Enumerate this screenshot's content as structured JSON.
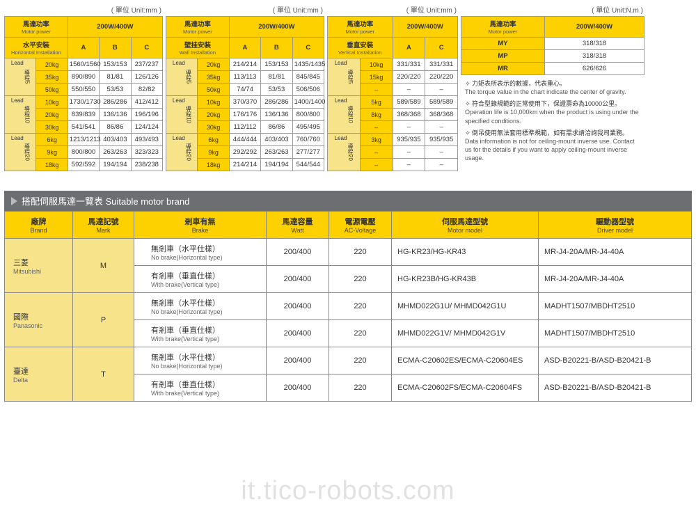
{
  "units": {
    "mm": "( 單位 Unit:mm )",
    "nm": "( 單位 Unit:N.m )"
  },
  "hdr": {
    "motorPower": "馬達功率",
    "motorPowerEn": "Motor power",
    "powVal": "200W/400W"
  },
  "installs": {
    "h": {
      "cn": "水平安裝",
      "en": "Horizontal Installation"
    },
    "w": {
      "cn": "壁挂安裝",
      "en": "Wall Installation"
    },
    "v": {
      "cn": "垂直安裝",
      "en": "Vertical Installation"
    }
  },
  "abc": [
    "A",
    "B",
    "C"
  ],
  "ac": [
    "A",
    "C"
  ],
  "leadLabels": {
    "l5": {
      "cn": "導程5",
      "en": "Lead"
    },
    "l10": {
      "cn": "導程10",
      "en": "Lead"
    },
    "l20": {
      "cn": "導程20",
      "en": "Lead"
    }
  },
  "t1": {
    "l5": [
      [
        "20kg",
        "1560/1560",
        "153/153",
        "237/237"
      ],
      [
        "35kg",
        "890/890",
        "81/81",
        "126/126"
      ],
      [
        "50kg",
        "550/550",
        "53/53",
        "82/82"
      ]
    ],
    "l10": [
      [
        "10kg",
        "1730/1730",
        "286/286",
        "412/412"
      ],
      [
        "20kg",
        "839/839",
        "136/136",
        "196/196"
      ],
      [
        "30kg",
        "541/541",
        "86/86",
        "124/124"
      ]
    ],
    "l20": [
      [
        "6kg",
        "1213/1213",
        "403/403",
        "493/493"
      ],
      [
        "9kg",
        "800/800",
        "263/263",
        "323/323"
      ],
      [
        "18kg",
        "592/592",
        "194/194",
        "238/238"
      ]
    ]
  },
  "t2": {
    "l5": [
      [
        "20kg",
        "214/214",
        "153/153",
        "1435/1435"
      ],
      [
        "35kg",
        "113/113",
        "81/81",
        "845/845"
      ],
      [
        "50kg",
        "74/74",
        "53/53",
        "506/506"
      ]
    ],
    "l10": [
      [
        "10kg",
        "370/370",
        "286/286",
        "1400/1400"
      ],
      [
        "20kg",
        "176/176",
        "136/136",
        "800/800"
      ],
      [
        "30kg",
        "112/112",
        "86/86",
        "495/495"
      ]
    ],
    "l20": [
      [
        "6kg",
        "444/444",
        "403/403",
        "760/760"
      ],
      [
        "9kg",
        "292/292",
        "263/263",
        "277/277"
      ],
      [
        "18kg",
        "214/214",
        "194/194",
        "544/544"
      ]
    ]
  },
  "t3": {
    "l5": [
      [
        "10kg",
        "331/331",
        "331/331"
      ],
      [
        "15kg",
        "220/220",
        "220/220"
      ],
      [
        "–",
        "–",
        "–"
      ]
    ],
    "l10": [
      [
        "5kg",
        "589/589",
        "589/589"
      ],
      [
        "8kg",
        "368/368",
        "368/368"
      ],
      [
        "–",
        "–",
        "–"
      ]
    ],
    "l20": [
      [
        "3kg",
        "935/935",
        "935/935"
      ],
      [
        "–",
        "–",
        "–"
      ],
      [
        "–",
        "–",
        "–"
      ]
    ]
  },
  "t4": {
    "rows": [
      [
        "MY",
        "318/318"
      ],
      [
        "MP",
        "318/318"
      ],
      [
        "MR",
        "626/626"
      ]
    ]
  },
  "notes": [
    {
      "cn": "✧ 力矩表所表示的數據，代表重心。",
      "en": "The torque value in the chart indicate the center of gravity."
    },
    {
      "cn": "✧ 符合型錄規範的正常使用下，保證壽命為10000公里。",
      "en": "Operation life is 10,000km when the product is using under the specified conditions."
    },
    {
      "cn": "✧ 倒吊使用無法套用標準規範，如有需求請洽詢我司業務。",
      "en": "Data information is not for ceiling-mount inverse use. Contact us for the details if you want to apply ceiling-mount inverse usage."
    }
  ],
  "sec2": {
    "title": "搭配伺服馬達一覽表 Suitable motor brand"
  },
  "mhdr": [
    {
      "cn": "廠牌",
      "en": "Brand"
    },
    {
      "cn": "馬達記號",
      "en": "Mark"
    },
    {
      "cn": "剎車有無",
      "en": "Brake"
    },
    {
      "cn": "馬達容量",
      "en": "Watt"
    },
    {
      "cn": "電源電壓",
      "en": "AC-Voltage"
    },
    {
      "cn": "伺服馬達型號",
      "en": "Motor model"
    },
    {
      "cn": "驅動器型號",
      "en": "Driver model"
    }
  ],
  "brake": {
    "no": {
      "cn": "無剎車（水平仕樣）",
      "en": "No brake(Horizontal type)"
    },
    "yes": {
      "cn": "有剎車（垂直仕樣）",
      "en": "With brake(Vertical type)"
    }
  },
  "brands": [
    {
      "cn": "三菱",
      "en": "Mitsubishi",
      "mark": "M",
      "rows": [
        {
          "bk": "no",
          "watt": "200/400",
          "v": "220",
          "motor": "HG-KR23/HG-KR43",
          "driver": "MR-J4-20A/MR-J4-40A"
        },
        {
          "bk": "yes",
          "watt": "200/400",
          "v": "220",
          "motor": "HG-KR23B/HG-KR43B",
          "driver": "MR-J4-20A/MR-J4-40A"
        }
      ]
    },
    {
      "cn": "國際",
      "en": "Panasonic",
      "mark": "P",
      "rows": [
        {
          "bk": "no",
          "watt": "200/400",
          "v": "220",
          "motor": "MHMD022G1U/ MHMD042G1U",
          "driver": "MADHT1507/MBDHT2510"
        },
        {
          "bk": "yes",
          "watt": "200/400",
          "v": "220",
          "motor": "MHMD022G1V/ MHMD042G1V",
          "driver": "MADHT1507/MBDHT2510"
        }
      ]
    },
    {
      "cn": "臺達",
      "en": "Delta",
      "mark": "T",
      "rows": [
        {
          "bk": "no",
          "watt": "200/400",
          "v": "220",
          "motor": "ECMA-C20602ES/ECMA-C20604ES",
          "driver": "ASD-B20221-B/ASD-B20421-B"
        },
        {
          "bk": "yes",
          "watt": "200/400",
          "v": "220",
          "motor": "ECMA-C20602FS/ECMA-C20604FS",
          "driver": "ASD-B20221-B/ASD-B20421-B"
        }
      ]
    }
  ],
  "watermark": "it.tico-robots.com",
  "colors": {
    "yellow": "#fdd000",
    "lightYellow": "#f6e38a",
    "barGrey": "#6d6e71"
  }
}
